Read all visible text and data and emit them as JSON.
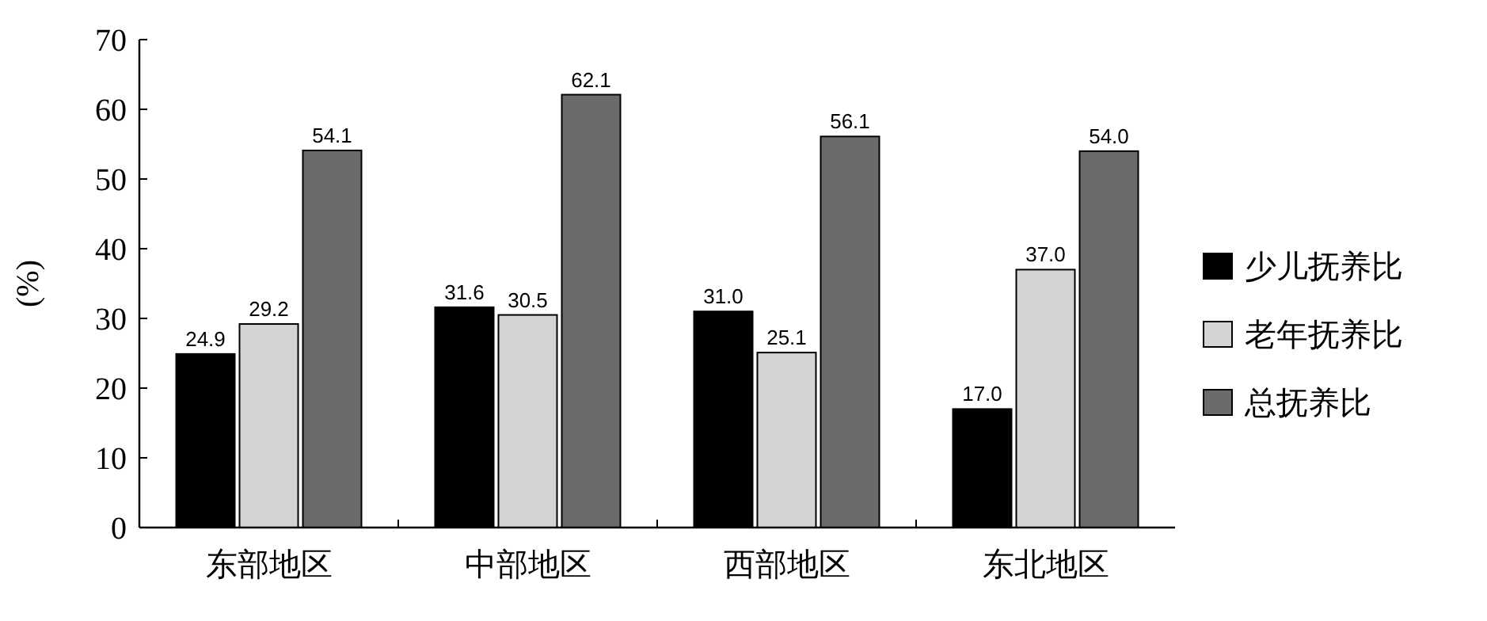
{
  "chart_data": {
    "type": "bar",
    "categories": [
      "东部地区",
      "中部地区",
      "西部地区",
      "东北地区"
    ],
    "series": [
      {
        "name": "少儿抚养比",
        "color": "#000000",
        "values": [
          24.9,
          31.6,
          31.0,
          17.0
        ],
        "value_labels": [
          "24.9",
          "31.6",
          "31.0",
          "17.0"
        ]
      },
      {
        "name": "老年抚养比",
        "color": "#d4d4d4",
        "values": [
          29.2,
          30.5,
          25.1,
          37.0
        ],
        "value_labels": [
          "29.2",
          "30.5",
          "25.1",
          "37.0"
        ]
      },
      {
        "name": "总抚养比",
        "color": "#6b6b6b",
        "values": [
          54.1,
          62.1,
          56.1,
          54.0
        ],
        "value_labels": [
          "54.1",
          "62.1",
          "56.1",
          "54.0"
        ]
      }
    ],
    "ylabel": "(%)",
    "ylim": [
      0,
      70
    ],
    "yticks": [
      0,
      10,
      20,
      30,
      40,
      50,
      60,
      70
    ],
    "legend": "right"
  }
}
